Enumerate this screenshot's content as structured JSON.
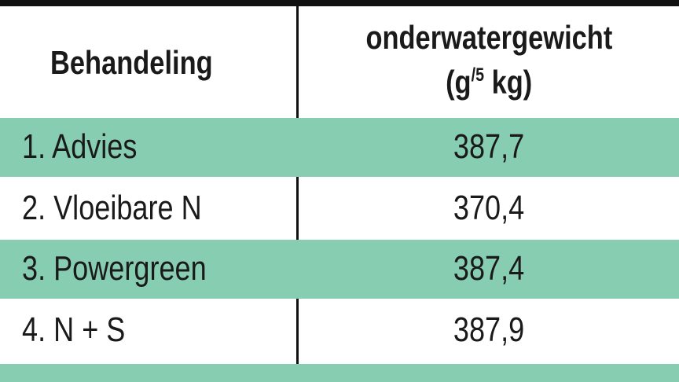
{
  "table": {
    "header": [
      "Behandeling",
      {
        "line1": "onderwatergewicht",
        "line2": [
          "(g",
          "/",
          "5",
          " kg)"
        ]
      }
    ],
    "rows": [
      [
        "1. Advies",
        "387,7"
      ],
      [
        "2. Vloeibare N",
        "370,4"
      ],
      [
        "3. Powergreen",
        "387,4"
      ],
      [
        "4. N + S",
        "387,9"
      ]
    ]
  }
}
